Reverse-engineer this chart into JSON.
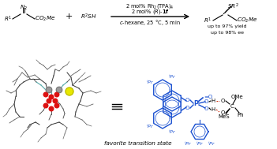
{
  "background_color": "#ffffff",
  "top_arrow_text_line1": "2 mol% Rh$_2$(TPA)$_4$",
  "top_arrow_text_line2": "2 mol% ($R$)-$\\mathbf{1f}$",
  "bottom_arrow_text": "$c$-hexane, 25 °C, 5 min",
  "yield_line1": "up to 97% yield",
  "yield_line2": "up to 98% ee",
  "bottom_label": "favorite transition state",
  "blue": "#1a50d0",
  "red_dash": "#cc2200",
  "fig_width": 3.51,
  "fig_height": 1.89,
  "dpi": 100
}
